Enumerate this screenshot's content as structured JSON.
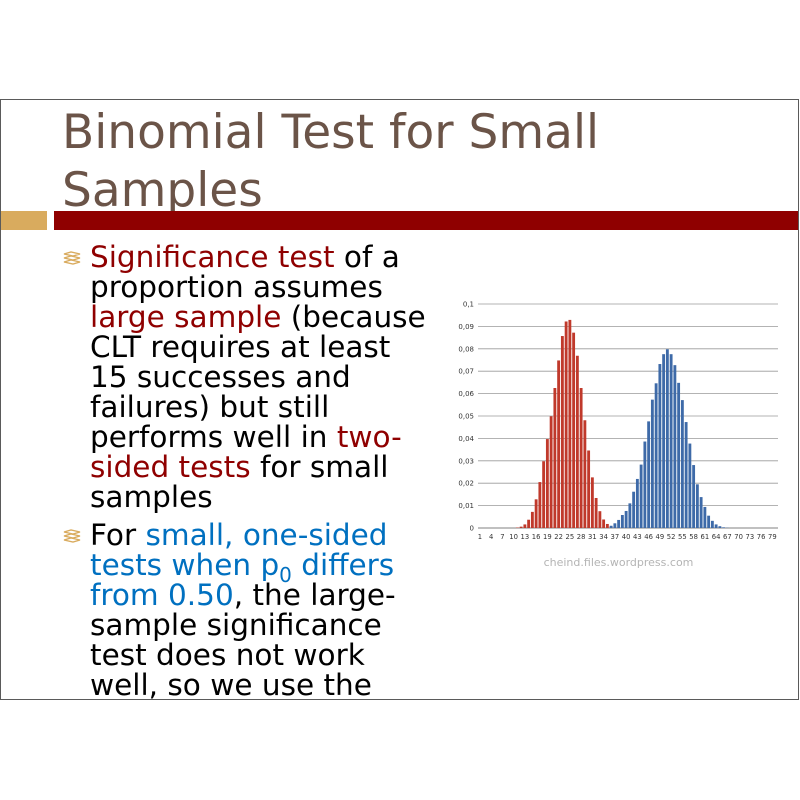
{
  "slide": {
    "title_line1": "Binomial Test for Small",
    "title_line2": "Samples",
    "bullets": [
      {
        "parts": [
          {
            "text": "Significance test",
            "style": "red"
          },
          {
            "text": " of a proportion assumes ",
            "style": "normal"
          },
          {
            "text": "large sample",
            "style": "red"
          },
          {
            "text": " (because CLT requires at least 15 successes and failures) but still performs well in ",
            "style": "normal"
          },
          {
            "text": "two-sided tests",
            "style": "red"
          },
          {
            "text": " for small samples",
            "style": "normal"
          }
        ]
      },
      {
        "parts": [
          {
            "text": "For ",
            "style": "normal"
          },
          {
            "text": "small, one-sided tests when p",
            "style": "blue"
          },
          {
            "text": "0",
            "style": "blue-sub"
          },
          {
            "text": " differs from 0.50",
            "style": "blue"
          },
          {
            "text": ", the large-sample significance test does not work well, so we use the",
            "style": "normal"
          }
        ]
      }
    ],
    "image_credit": "cheind.files.wordpress.com"
  },
  "colors": {
    "title": "#6b5448",
    "accent_red": "#8f0000",
    "accent_gold": "#d9ab5e",
    "highlight_blue": "#0070c0",
    "series_red": "#c0392b",
    "series_blue": "#3e6aa8"
  },
  "chart_data": {
    "type": "bar",
    "title": "",
    "xlabel": "",
    "ylabel": "",
    "ylim": [
      0,
      0.1
    ],
    "y_ticks": [
      "0",
      "0,01",
      "0,02",
      "0,03",
      "0,04",
      "0,05",
      "0,06",
      "0,07",
      "0,08",
      "0,09",
      "0,1"
    ],
    "x_ticks": [
      "1",
      "4",
      "7",
      "10",
      "13",
      "16",
      "19",
      "22",
      "25",
      "28",
      "31",
      "34",
      "37",
      "40",
      "43",
      "46",
      "49",
      "52",
      "55",
      "58",
      "61",
      "64",
      "67",
      "70",
      "73",
      "76",
      "79"
    ],
    "x": [
      1,
      2,
      3,
      4,
      5,
      6,
      7,
      8,
      9,
      10,
      11,
      12,
      13,
      14,
      15,
      16,
      17,
      18,
      19,
      20,
      21,
      22,
      23,
      24,
      25,
      26,
      27,
      28,
      29,
      30,
      31,
      32,
      33,
      34,
      35,
      36,
      37,
      38,
      39,
      40,
      41,
      42,
      43,
      44,
      45,
      46,
      47,
      48,
      49,
      50,
      51,
      52,
      53,
      54,
      55,
      56,
      57,
      58,
      59,
      60,
      61,
      62,
      63,
      64,
      65,
      66,
      67,
      68,
      69,
      70,
      71,
      72,
      73,
      74,
      75,
      76,
      77,
      78,
      79,
      80
    ],
    "grid": true,
    "legend": "none",
    "series": [
      {
        "color": "#c0392b",
        "values": [
          0,
          0,
          0,
          0,
          0,
          0,
          0,
          0,
          0,
          0,
          0.0002,
          0.0006,
          0.0016,
          0.0037,
          0.0072,
          0.0128,
          0.0205,
          0.0298,
          0.0397,
          0.0499,
          0.0625,
          0.0748,
          0.0857,
          0.0922,
          0.0929,
          0.0872,
          0.0769,
          0.0625,
          0.0481,
          0.0346,
          0.0226,
          0.0134,
          0.0075,
          0.0038,
          0.0018,
          0.0007,
          0.0002,
          0.0001,
          0,
          0,
          0,
          0,
          0,
          0,
          0,
          0,
          0,
          0,
          0,
          0,
          0,
          0,
          0,
          0,
          0,
          0,
          0,
          0,
          0,
          0,
          0,
          0,
          0,
          0,
          0,
          0,
          0,
          0,
          0,
          0,
          0,
          0,
          0,
          0,
          0,
          0,
          0,
          0,
          0,
          0
        ]
      },
      {
        "color": "#3e6aa8",
        "values": [
          0,
          0,
          0,
          0,
          0,
          0,
          0,
          0,
          0,
          0,
          0,
          0,
          0,
          0,
          0,
          0,
          0,
          0,
          0,
          0,
          0,
          0,
          0,
          0,
          0,
          0,
          0,
          0,
          0,
          0,
          0,
          0,
          0,
          0,
          0,
          0.001,
          0.0021,
          0.0036,
          0.0058,
          0.0076,
          0.011,
          0.0162,
          0.0219,
          0.0283,
          0.0386,
          0.0476,
          0.0573,
          0.0646,
          0.0732,
          0.0776,
          0.0798,
          0.0776,
          0.0727,
          0.0648,
          0.0571,
          0.0473,
          0.0377,
          0.0281,
          0.0195,
          0.0138,
          0.0094,
          0.0055,
          0.0032,
          0.0016,
          0.0008,
          0.0003,
          0.0001,
          0,
          0,
          0,
          0,
          0,
          0,
          0,
          0,
          0,
          0,
          0,
          0,
          0
        ]
      }
    ]
  }
}
